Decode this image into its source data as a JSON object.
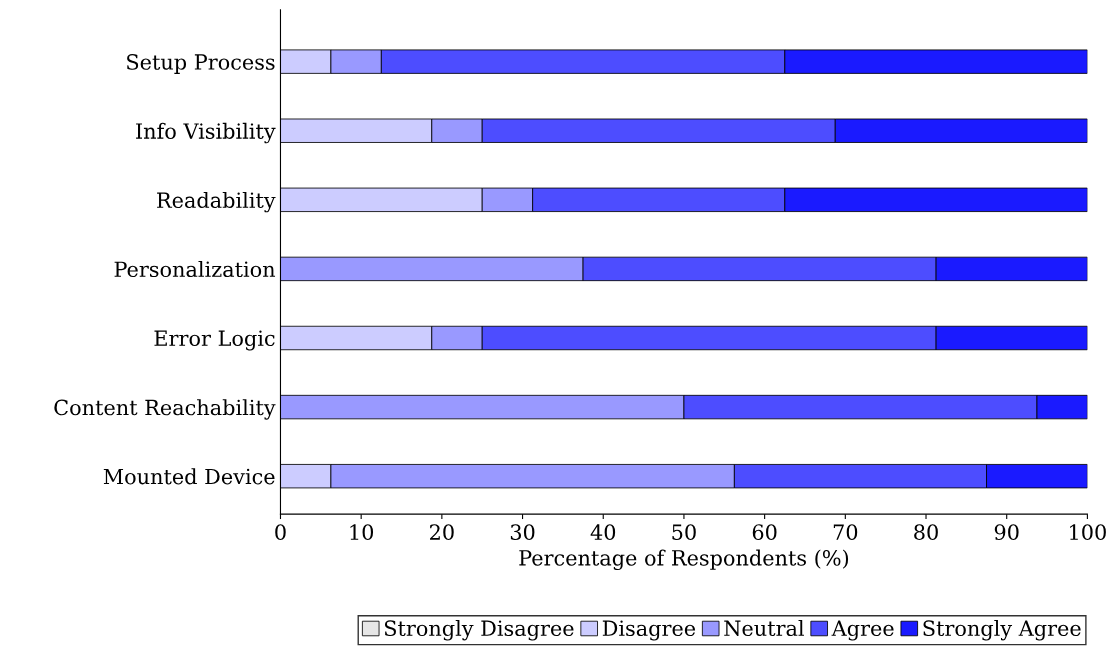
{
  "chart_data": {
    "type": "bar",
    "orientation": "horizontal",
    "stacked": true,
    "xlabel": "Percentage of Respondents (%)",
    "categories": [
      "Setup Process",
      "Info Visibility",
      "Readability",
      "Personalization",
      "Error Logic",
      "Content Reachability",
      "Mounted Device"
    ],
    "series": [
      {
        "name": "Strongly Disagree",
        "color": "#e6e6e6",
        "values": [
          0,
          0,
          0,
          0,
          0,
          0,
          0
        ]
      },
      {
        "name": "Disagree",
        "color": "#ccccff",
        "values": [
          6.25,
          18.75,
          25,
          0,
          18.75,
          0,
          6.25
        ]
      },
      {
        "name": "Neutral",
        "color": "#9999ff",
        "values": [
          6.25,
          6.25,
          6.25,
          37.5,
          6.25,
          50,
          50
        ]
      },
      {
        "name": "Agree",
        "color": "#4d4dff",
        "values": [
          50,
          43.75,
          31.25,
          43.75,
          56.25,
          43.75,
          31.25
        ]
      },
      {
        "name": "Strongly Agree",
        "color": "#1a1aff",
        "values": [
          37.5,
          31.25,
          37.5,
          18.75,
          18.75,
          6.25,
          12.5
        ]
      }
    ],
    "xlim": [
      0,
      100
    ],
    "xticks": [
      0,
      10,
      20,
      30,
      40,
      50,
      60,
      70,
      80,
      90,
      100
    ],
    "grid": false,
    "legend": "bottom"
  }
}
